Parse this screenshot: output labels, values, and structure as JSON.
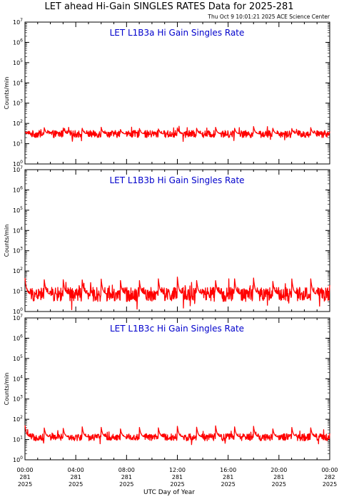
{
  "header": {
    "title": "LET ahead Hi-Gain SINGLES RATES Data for 2025-281",
    "timestamp": "Thu Oct  9 10:01:21 2025 ACE Science Center"
  },
  "colors": {
    "series": "#ff0000",
    "panel_title": "#0000cc",
    "axis": "#000000"
  },
  "chart_data": [
    {
      "type": "line",
      "title": "LET L1B3a Hi Gain Singles Rate",
      "ylabel": "Counts/min",
      "yscale": "log",
      "ylim": [
        1,
        10000000
      ],
      "xlim": [
        "281 00:00",
        "282 00:00"
      ],
      "y_ticks": [
        "10^0",
        "10^1",
        "10^2",
        "10^3",
        "10^4",
        "10^5",
        "10^6",
        "10^7"
      ],
      "series": [
        {
          "x_unit": "hours since 2025-281 00:00",
          "baseline": 30,
          "noise_range": [
            20,
            45
          ],
          "spike_period_hours": 1.5,
          "spike_peak": 70,
          "x": [
            0,
            1.5,
            3,
            4.5,
            6,
            7.5,
            9,
            10.5,
            12,
            13.5,
            15,
            16.5,
            18,
            19.5,
            21,
            22.5,
            24
          ],
          "values": [
            35,
            70,
            65,
            60,
            65,
            55,
            60,
            55,
            60,
            65,
            70,
            60,
            70,
            65,
            60,
            65,
            40
          ]
        }
      ]
    },
    {
      "type": "line",
      "title": "LET L1B3b Hi Gain Singles Rate",
      "ylabel": "Counts/min",
      "yscale": "log",
      "ylim": [
        1,
        10000000
      ],
      "xlim": [
        "281 00:00",
        "282 00:00"
      ],
      "y_ticks": [
        "10^0",
        "10^1",
        "10^2",
        "10^3",
        "10^4",
        "10^5",
        "10^6",
        "10^7"
      ],
      "series": [
        {
          "x_unit": "hours since 2025-281 00:00",
          "baseline": 7,
          "noise_range": [
            3,
            15
          ],
          "spike_period_hours": 1.5,
          "spike_peak": 50,
          "x": [
            0,
            1.5,
            3,
            4.5,
            6,
            7.5,
            9,
            10.5,
            12,
            13.5,
            15,
            16.5,
            18,
            19.5,
            21,
            22.5,
            24
          ],
          "values": [
            45,
            50,
            45,
            40,
            40,
            45,
            40,
            45,
            50,
            45,
            40,
            45,
            45,
            40,
            50,
            45,
            20
          ]
        }
      ]
    },
    {
      "type": "line",
      "title": "LET L1B3c Hi Gain Singles Rate",
      "ylabel": "Counts/min",
      "yscale": "log",
      "ylim": [
        1,
        10000000
      ],
      "xlim": [
        "281 00:00",
        "282 00:00"
      ],
      "y_ticks": [
        "10^0",
        "10^1",
        "10^2",
        "10^3",
        "10^4",
        "10^5",
        "10^6",
        "10^7"
      ],
      "series": [
        {
          "x_unit": "hours since 2025-281 00:00",
          "baseline": 13,
          "noise_range": [
            9,
            20
          ],
          "spike_period_hours": 1.5,
          "spike_peak": 55,
          "x": [
            0,
            1.5,
            3,
            4.5,
            6,
            7.5,
            9,
            10.5,
            12,
            13.5,
            15,
            16.5,
            18,
            19.5,
            21,
            22.5,
            24
          ],
          "values": [
            50,
            45,
            40,
            45,
            40,
            40,
            45,
            40,
            45,
            50,
            55,
            45,
            45,
            40,
            45,
            40,
            20
          ]
        }
      ]
    }
  ],
  "x_axis": {
    "label": "UTC Day of Year",
    "ticks": [
      {
        "hour": 0,
        "time": "00:00",
        "doy": "281",
        "year": "2025"
      },
      {
        "hour": 4,
        "time": "04:00",
        "doy": "281",
        "year": "2025"
      },
      {
        "hour": 8,
        "time": "08:00",
        "doy": "281",
        "year": "2025"
      },
      {
        "hour": 12,
        "time": "12:00",
        "doy": "281",
        "year": "2025"
      },
      {
        "hour": 16,
        "time": "16:00",
        "doy": "281",
        "year": "2025"
      },
      {
        "hour": 20,
        "time": "20:00",
        "doy": "281",
        "year": "2025"
      },
      {
        "hour": 24,
        "time": "00:00",
        "doy": "282",
        "year": "2025"
      }
    ]
  }
}
